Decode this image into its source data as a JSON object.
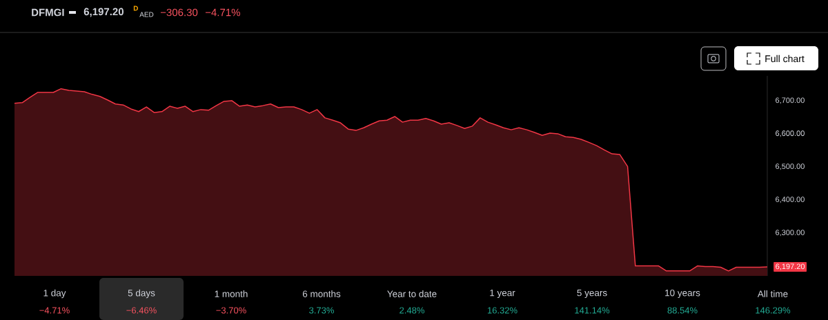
{
  "chart_data": {
    "type": "area",
    "title": "DFMGI",
    "categories": [
      null,
      null,
      null,
      null,
      null,
      null,
      null,
      null,
      null,
      null,
      null,
      null,
      null,
      null,
      null,
      null,
      null,
      null,
      null,
      null,
      null,
      null,
      null,
      null,
      null,
      null,
      null,
      null,
      null,
      null,
      null,
      null,
      null,
      null,
      null,
      null,
      null,
      null,
      null,
      null,
      null,
      null,
      null,
      null,
      null,
      null,
      null,
      null,
      null,
      null,
      null,
      null,
      null,
      null,
      null,
      null,
      null,
      null,
      null,
      null,
      null,
      null,
      null,
      null,
      null,
      null,
      null,
      null,
      null,
      null,
      null,
      null,
      null,
      null,
      null,
      null,
      null,
      null,
      null,
      null,
      null,
      null,
      null,
      null,
      null,
      null,
      null,
      null,
      null,
      null,
      null,
      null,
      null,
      null,
      null,
      null,
      null,
      null
    ],
    "series": [
      {
        "color": "#f23645",
        "values": [
          6692,
          6694,
          6710,
          6725,
          6725,
          6725,
          6736,
          6731,
          6729,
          6727,
          6719,
          6713,
          6702,
          6690,
          6687,
          6675,
          6667,
          6681,
          6664,
          6667,
          6683,
          6677,
          6683,
          6667,
          6673,
          6671,
          6685,
          6698,
          6700,
          6683,
          6687,
          6681,
          6685,
          6690,
          6679,
          6681,
          6681,
          6673,
          6662,
          6673,
          6648,
          6641,
          6633,
          6614,
          6610,
          6618,
          6629,
          6639,
          6641,
          6652,
          6635,
          6641,
          6641,
          6646,
          6639,
          6629,
          6633,
          6625,
          6616,
          6623,
          6648,
          6635,
          6627,
          6618,
          6612,
          6618,
          6612,
          6604,
          6595,
          6602,
          6600,
          6591,
          6589,
          6583,
          6574,
          6564,
          6551,
          6539,
          6537,
          6501,
          6200,
          6200,
          6200,
          6200,
          6185,
          6185,
          6185,
          6185,
          6200,
          6198,
          6198,
          6196,
          6185,
          6196,
          6196,
          6196,
          6196,
          6197.2
        ]
      }
    ],
    "ylim": [
      6170,
      6775
    ],
    "yticks": [
      {
        "value": 6300,
        "label": "6,300.00"
      },
      {
        "value": 6400,
        "label": "6,400.00"
      },
      {
        "value": 6500,
        "label": "6,500.00"
      },
      {
        "value": 6600,
        "label": "6,600.00"
      },
      {
        "value": 6700,
        "label": "6,700.00"
      }
    ],
    "tick_labels": "y",
    "annotations": [
      "6,197.20",
      "D",
      "AED",
      "−306.30",
      "−4.71%",
      "Full chart",
      "1 day",
      "5 days",
      "1 month",
      "6 months",
      "Year to date",
      "1 year",
      "5 years",
      "10 years",
      "All time",
      "−4.71%",
      "−6.46%",
      "−3.70%",
      "3.73%",
      "2.48%",
      "16.32%",
      "141.14%",
      "88.54%",
      "146.29%",
      "6,197.20"
    ]
  }
}
